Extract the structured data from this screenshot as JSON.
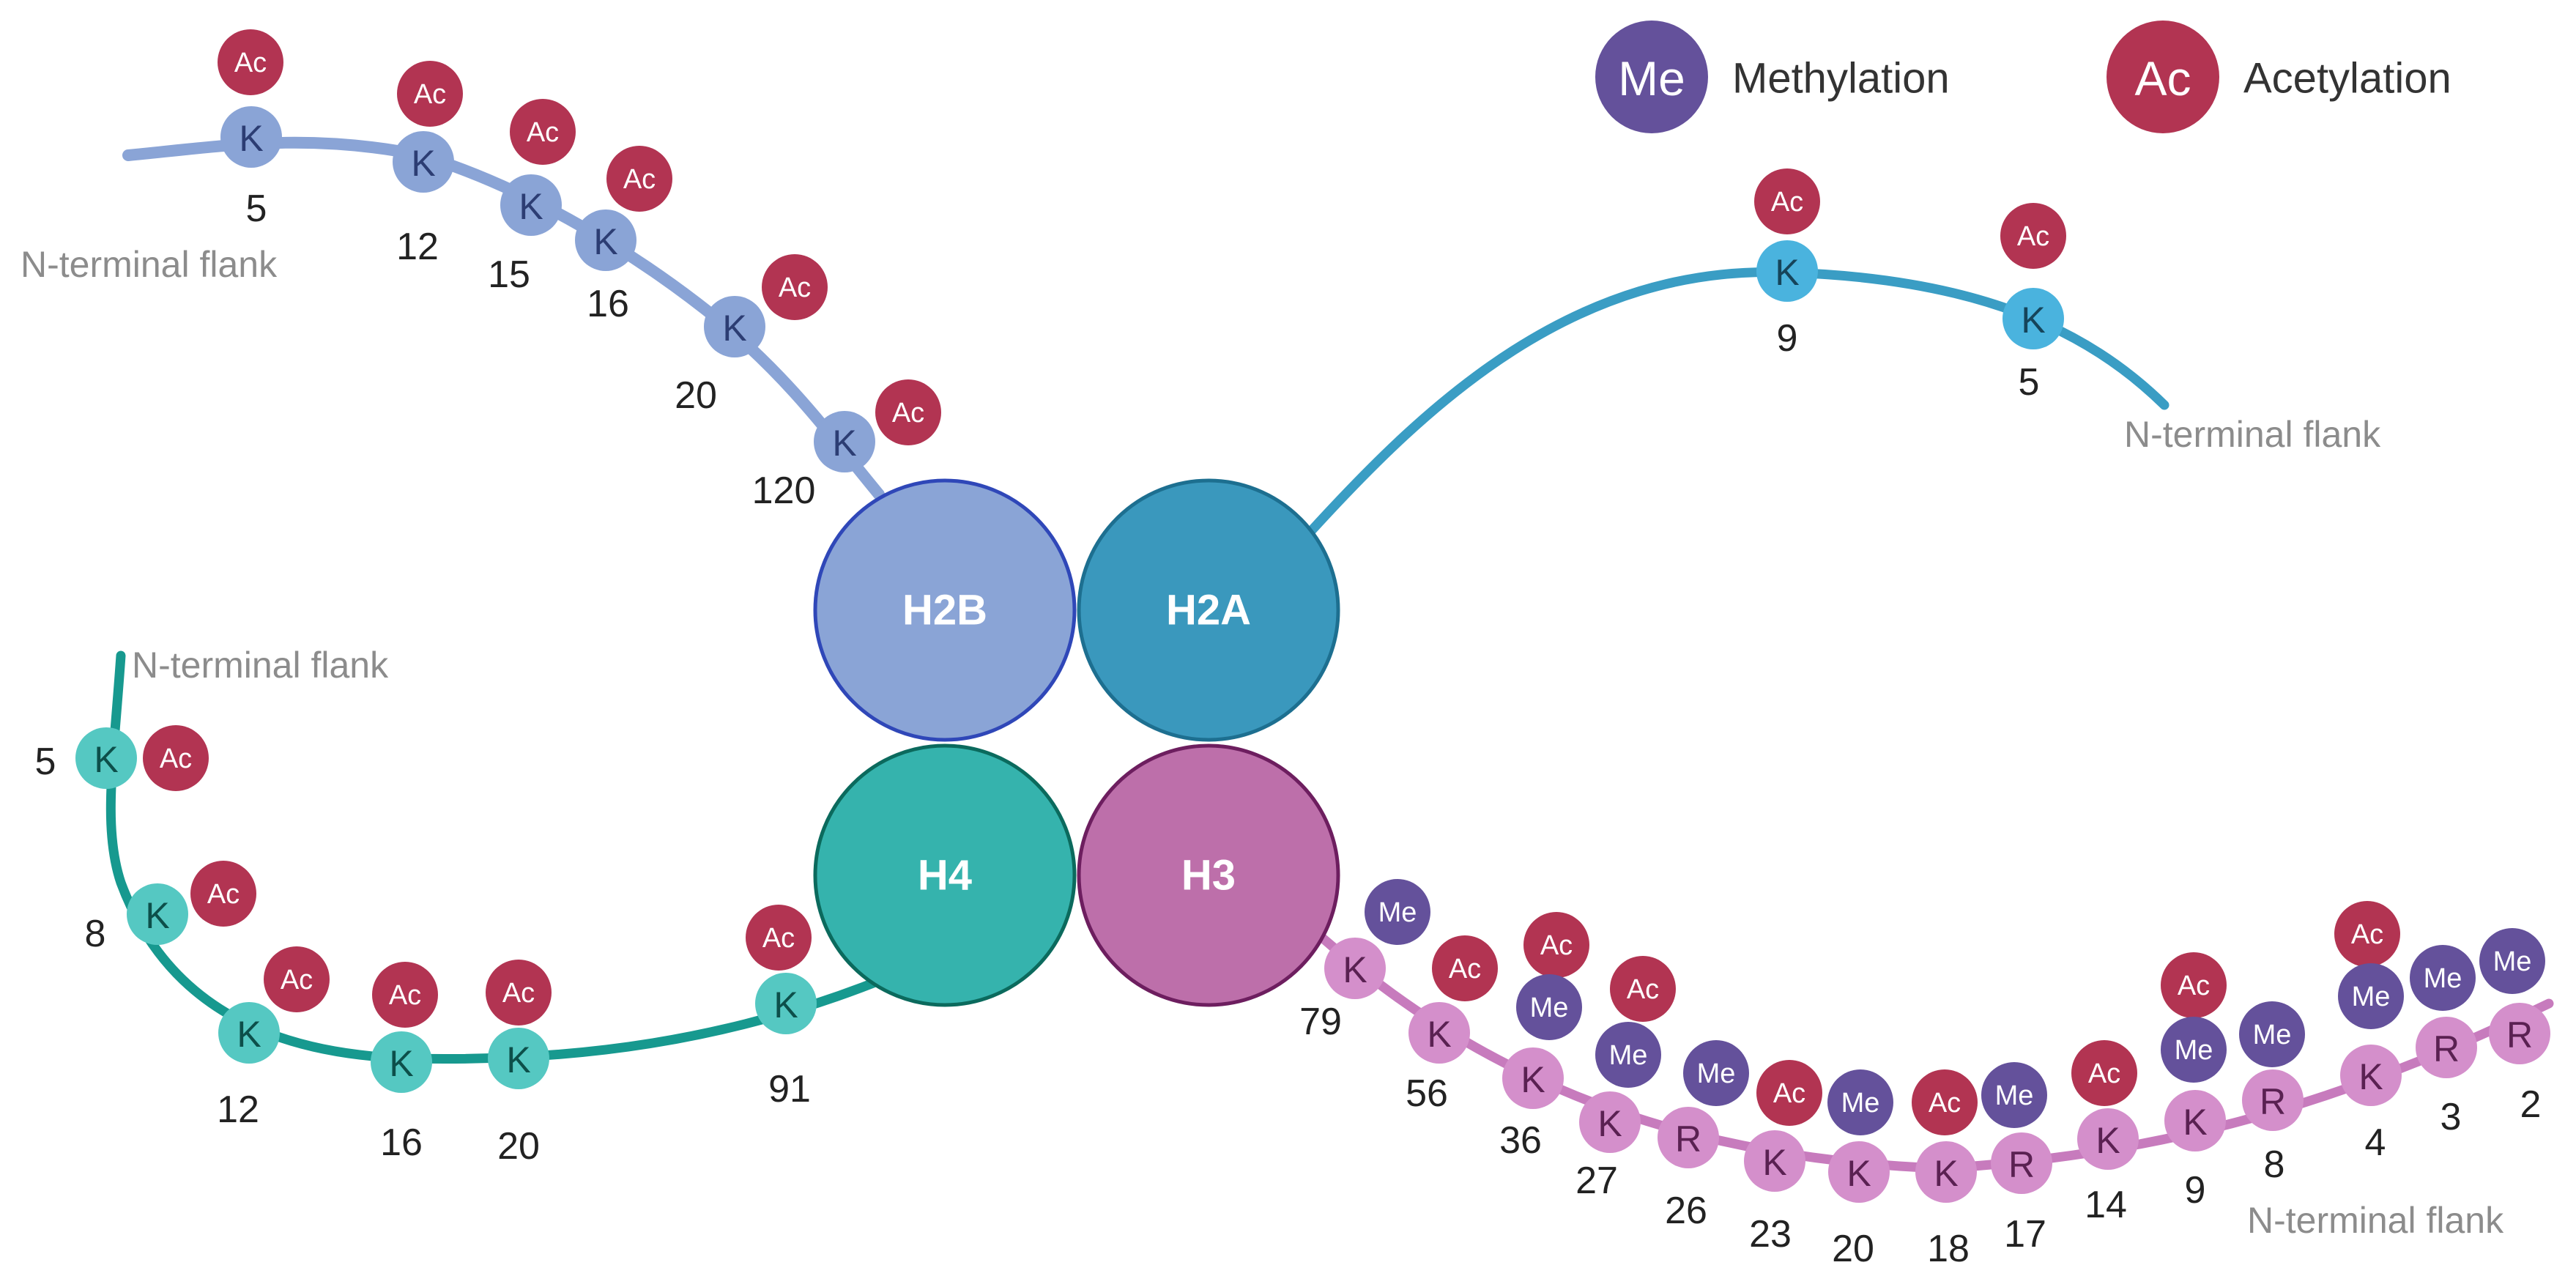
{
  "legend": {
    "methylation": {
      "badge": "Me",
      "label": "Methylation",
      "color": "#64519b"
    },
    "acetylation": {
      "badge": "Ac",
      "label": "Acetylation",
      "color": "#b23452"
    }
  },
  "flank_label": "N-terminal flank",
  "histones": [
    {
      "id": "h2b",
      "label": "H2B",
      "fill": "#8aa4d6",
      "stroke": "#2f47b8"
    },
    {
      "id": "h2a",
      "label": "H2A",
      "fill": "#3a98bd",
      "stroke": "#1d6f90"
    },
    {
      "id": "h4",
      "label": "H4",
      "fill": "#35b3ad",
      "stroke": "#0b6a5d"
    },
    {
      "id": "h3",
      "label": "H3",
      "fill": "#bd6faa",
      "stroke": "#6d1e5f"
    }
  ],
  "tails": {
    "h2b": {
      "line_color": "#8aa4d6",
      "residue_color": "#8aa4d6",
      "residue_text": "#2c3d73",
      "residues": [
        {
          "aa": "K",
          "pos": "5",
          "mods": [
            "Ac"
          ]
        },
        {
          "aa": "K",
          "pos": "12",
          "mods": [
            "Ac"
          ]
        },
        {
          "aa": "K",
          "pos": "15",
          "mods": [
            "Ac"
          ]
        },
        {
          "aa": "K",
          "pos": "16",
          "mods": [
            "Ac"
          ]
        },
        {
          "aa": "K",
          "pos": "20",
          "mods": [
            "Ac"
          ]
        },
        {
          "aa": "K",
          "pos": "120",
          "mods": [
            "Ac"
          ]
        }
      ]
    },
    "h2a": {
      "line_color": "#3a9dc4",
      "residue_color": "#4ab3de",
      "residue_text": "#16445a",
      "residues": [
        {
          "aa": "K",
          "pos": "9",
          "mods": [
            "Ac"
          ]
        },
        {
          "aa": "K",
          "pos": "5",
          "mods": [
            "Ac"
          ]
        }
      ]
    },
    "h4": {
      "line_color": "#17998f",
      "residue_color": "#55c8c2",
      "residue_text": "#0d4f4a",
      "residues": [
        {
          "aa": "K",
          "pos": "5",
          "mods": [
            "Ac"
          ]
        },
        {
          "aa": "K",
          "pos": "8",
          "mods": [
            "Ac"
          ]
        },
        {
          "aa": "K",
          "pos": "12",
          "mods": [
            "Ac"
          ]
        },
        {
          "aa": "K",
          "pos": "16",
          "mods": [
            "Ac"
          ]
        },
        {
          "aa": "K",
          "pos": "20",
          "mods": [
            "Ac"
          ]
        },
        {
          "aa": "K",
          "pos": "91",
          "mods": [
            "Ac"
          ]
        }
      ]
    },
    "h3": {
      "line_color": "#c77bbd",
      "residue_color": "#d48fcb",
      "residue_text": "#5a2152",
      "residues": [
        {
          "aa": "K",
          "pos": "79",
          "mods": [
            "Me"
          ]
        },
        {
          "aa": "K",
          "pos": "56",
          "mods": [
            "Ac"
          ]
        },
        {
          "aa": "K",
          "pos": "36",
          "mods": [
            "Ac",
            "Me"
          ]
        },
        {
          "aa": "K",
          "pos": "27",
          "mods": [
            "Ac",
            "Me"
          ]
        },
        {
          "aa": "R",
          "pos": "26",
          "mods": [
            "Me"
          ]
        },
        {
          "aa": "K",
          "pos": "23",
          "mods": [
            "Ac"
          ]
        },
        {
          "aa": "K",
          "pos": "20",
          "mods": [
            "Me"
          ]
        },
        {
          "aa": "K",
          "pos": "18",
          "mods": [
            "Ac"
          ]
        },
        {
          "aa": "R",
          "pos": "17",
          "mods": [
            "Me"
          ]
        },
        {
          "aa": "K",
          "pos": "14",
          "mods": [
            "Ac"
          ]
        },
        {
          "aa": "K",
          "pos": "9",
          "mods": [
            "Ac",
            "Me"
          ]
        },
        {
          "aa": "R",
          "pos": "8",
          "mods": [
            "Me"
          ]
        },
        {
          "aa": "K",
          "pos": "4",
          "mods": [
            "Ac",
            "Me"
          ]
        },
        {
          "aa": "R",
          "pos": "3",
          "mods": [
            "Me"
          ]
        },
        {
          "aa": "R",
          "pos": "2",
          "mods": [
            "Me"
          ]
        }
      ]
    }
  }
}
